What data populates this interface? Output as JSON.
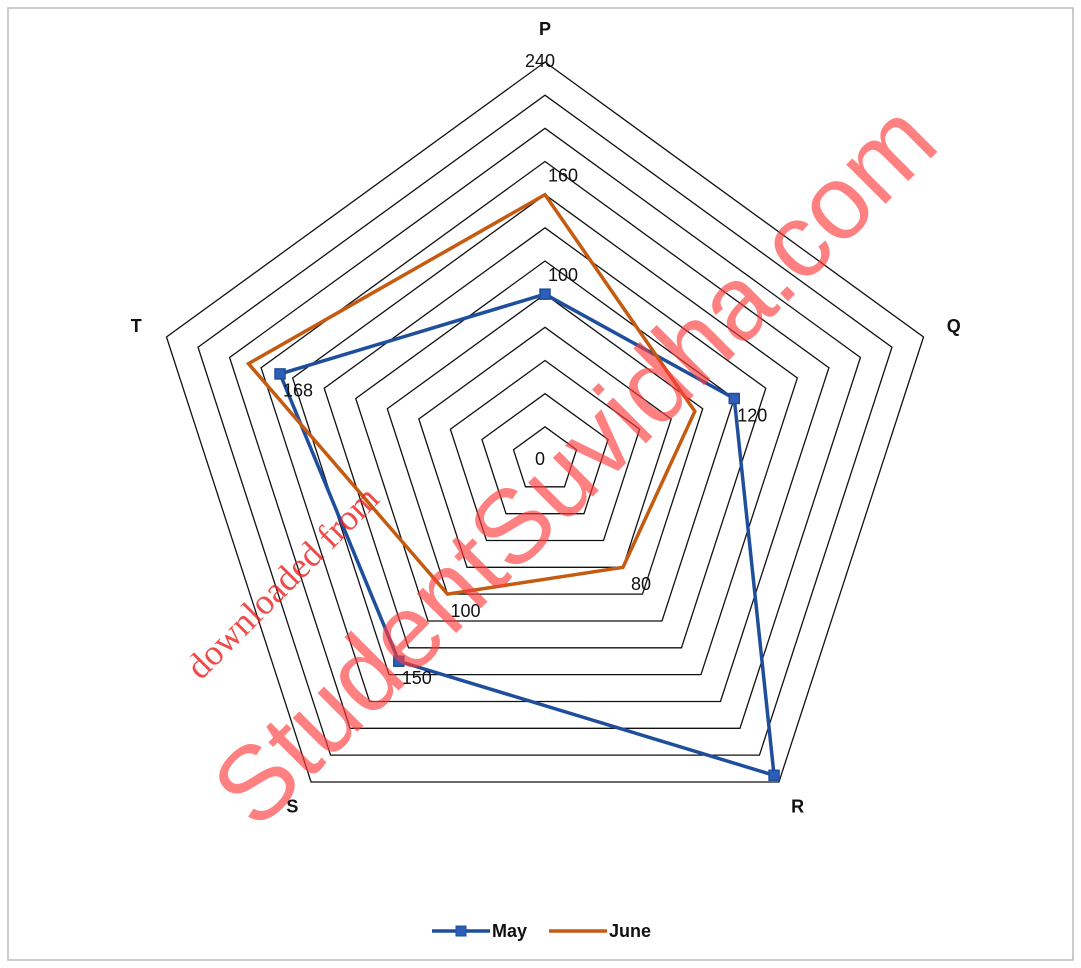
{
  "chart_data": {
    "type": "radar",
    "categories": [
      "P",
      "Q",
      "R",
      "S",
      "T"
    ],
    "ylim": [
      0,
      240
    ],
    "yticks": [
      0,
      {
        "value": 20,
        "label": null
      },
      {
        "value": 40,
        "label": null
      },
      {
        "value": 60,
        "label": null
      },
      {
        "value": 80,
        "label": null
      },
      {
        "value": 100,
        "label": null
      },
      {
        "value": 120,
        "label": null
      },
      {
        "value": 140,
        "label": null
      },
      {
        "value": 160,
        "label": null
      },
      {
        "value": 180,
        "label": null
      },
      {
        "value": 200,
        "label": null
      },
      {
        "value": 220,
        "label": null
      },
      240
    ],
    "grid": true,
    "legend": "bottom",
    "series": [
      {
        "name": "May",
        "color": "#1f4e9c",
        "values": [
          100,
          120,
          235,
          150,
          168
        ],
        "value_labels": [
          "100",
          "120",
          null,
          "150",
          "168"
        ]
      },
      {
        "name": "June",
        "color": "#c55a11",
        "values": [
          160,
          95,
          80,
          100,
          188
        ],
        "value_labels": [
          "160",
          null,
          "80",
          "100",
          null
        ]
      }
    ],
    "watermark": {
      "main": "StudentSuvidha.com",
      "small": "downloaded from"
    }
  }
}
